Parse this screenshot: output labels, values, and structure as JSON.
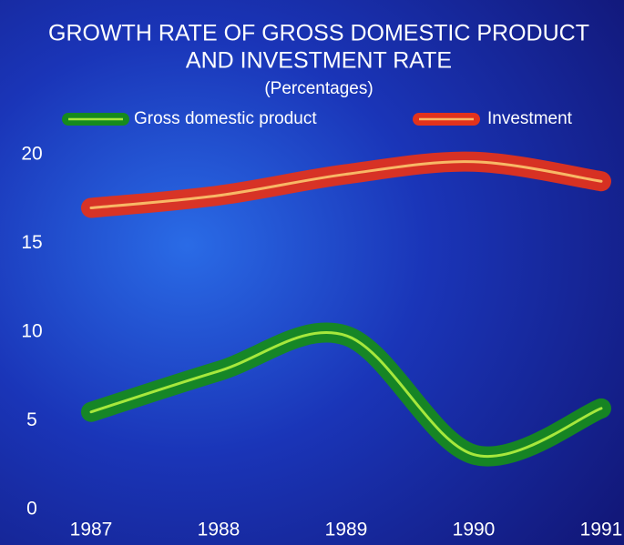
{
  "chart_data": {
    "type": "line",
    "title": [
      "GROWTH RATE OF GROSS DOMESTIC PRODUCT",
      "AND INVESTMENT RATE"
    ],
    "subtitle": "(Percentages)",
    "categories": [
      "1987",
      "1988",
      "1989",
      "1990",
      "1991"
    ],
    "series": [
      {
        "name": "Gross domestic product",
        "color": "#168a1e",
        "highlight": "#a6e83c",
        "values": [
          5.5,
          7.8,
          9.8,
          3.1,
          5.7
        ]
      },
      {
        "name": "Investment",
        "color": "#e2321c",
        "highlight": "#f8b866",
        "values": [
          17.0,
          17.7,
          18.9,
          19.6,
          18.5
        ]
      }
    ],
    "ylim": [
      0,
      20
    ],
    "yticks": [
      0,
      5,
      10,
      15,
      20
    ],
    "grid": false,
    "legend": "top"
  }
}
